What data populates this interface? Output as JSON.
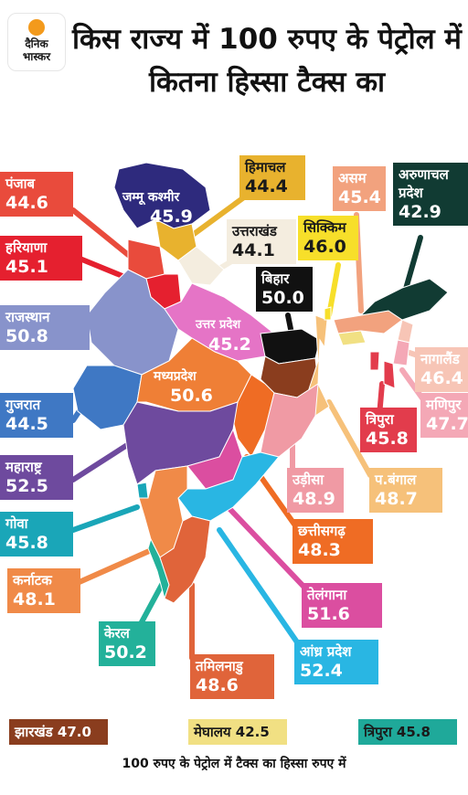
{
  "brand": {
    "line1": "दैनिक",
    "line2": "भास्कर"
  },
  "headline": "किस राज्य में 100 रुपए के पेट्रोल में कितना हिस्सा टैक्स का",
  "states": [
    {
      "id": "punjab",
      "name": "पंजाब",
      "value": "44.6",
      "color": "#e94b3c"
    },
    {
      "id": "haryana",
      "name": "हरियाणा",
      "value": "45.1",
      "color": "#e5202f"
    },
    {
      "id": "rajasthan",
      "name": "राजस्थान",
      "value": "50.8",
      "color": "#8893cb"
    },
    {
      "id": "gujarat",
      "name": "गुजरात",
      "value": "44.5",
      "color": "#3f78c4"
    },
    {
      "id": "maharashtra",
      "name": "महाराष्ट्र",
      "value": "52.5",
      "color": "#6e4a9e"
    },
    {
      "id": "goa",
      "name": "गोवा",
      "value": "45.8",
      "color": "#1aa6b8"
    },
    {
      "id": "karnataka",
      "name": "कर्नाटक",
      "value": "48.1",
      "color": "#f08a48"
    },
    {
      "id": "kerala",
      "name": "केरल",
      "value": "50.2",
      "color": "#23b19a"
    },
    {
      "id": "tamilnadu",
      "name": "तमिलनाडु",
      "value": "48.6",
      "color": "#e0643a"
    },
    {
      "id": "andhra",
      "name": "आंध्र प्रदेश",
      "value": "52.4",
      "color": "#29b6e3"
    },
    {
      "id": "telangana",
      "name": "तेलंगाना",
      "value": "51.6",
      "color": "#db4ea0"
    },
    {
      "id": "chhattisgarh",
      "name": "छत्तीसगढ़",
      "value": "48.3",
      "color": "#ef6c24"
    },
    {
      "id": "odisha",
      "name": "उड़ीसा",
      "value": "48.9",
      "color": "#f09aa4"
    },
    {
      "id": "westbengal",
      "name": "प.बंगाल",
      "value": "48.7",
      "color": "#f6c17a"
    },
    {
      "id": "tripura",
      "name": "त्रिपुरा",
      "value": "45.8",
      "color": "#e23c4c"
    },
    {
      "id": "manipur",
      "name": "मणिपुर",
      "value": "47.7",
      "color": "#f4a8b6"
    },
    {
      "id": "nagaland",
      "name": "नागालैंड",
      "value": "46.4",
      "color": "#f7c5b6"
    },
    {
      "id": "arunachal",
      "name": "अरुणाचल प्रदेश",
      "value": "42.9",
      "color": "#113b33"
    },
    {
      "id": "assam",
      "name": "असम",
      "value": "45.4",
      "color": "#f2a27e"
    },
    {
      "id": "sikkim",
      "name": "सिक्किम",
      "value": "46.0",
      "color": "#f7df2a"
    },
    {
      "id": "bihar",
      "name": "बिहार",
      "value": "50.0",
      "color": "#111111"
    },
    {
      "id": "uttarakhand",
      "name": "उत्तराखंड",
      "value": "44.1",
      "color": "#f4eddf"
    },
    {
      "id": "himachal",
      "name": "हिमाचल",
      "value": "44.4",
      "color": "#e8b22e"
    },
    {
      "id": "jk",
      "name": "जम्मू कश्मीर",
      "value": "45.9",
      "color": "#2e2a7d"
    },
    {
      "id": "up",
      "name": "उत्तर प्रदेश",
      "value": "45.2",
      "color": "#e574c6"
    },
    {
      "id": "mp",
      "name": "मध्यप्रदेश",
      "value": "50.6",
      "color": "#ef7f36"
    },
    {
      "id": "jharkhand",
      "name": "झारखंड",
      "value": "47.0",
      "color": "#8a3d1e"
    },
    {
      "id": "meghalaya",
      "name": "मेघालय",
      "value": "42.5",
      "color": "#f1e083"
    }
  ],
  "legend": [
    {
      "text": "झारखंड 47.0",
      "color": "#8a3d1e"
    },
    {
      "text": "मेघालय 42.5",
      "color": "#f1e083"
    },
    {
      "text": "त्रिपुरा 45.8",
      "color": "#1fa99a"
    }
  ],
  "footnote": "100 रुपए के पेट्रोल में टैक्स का हिस्सा रुपए में"
}
